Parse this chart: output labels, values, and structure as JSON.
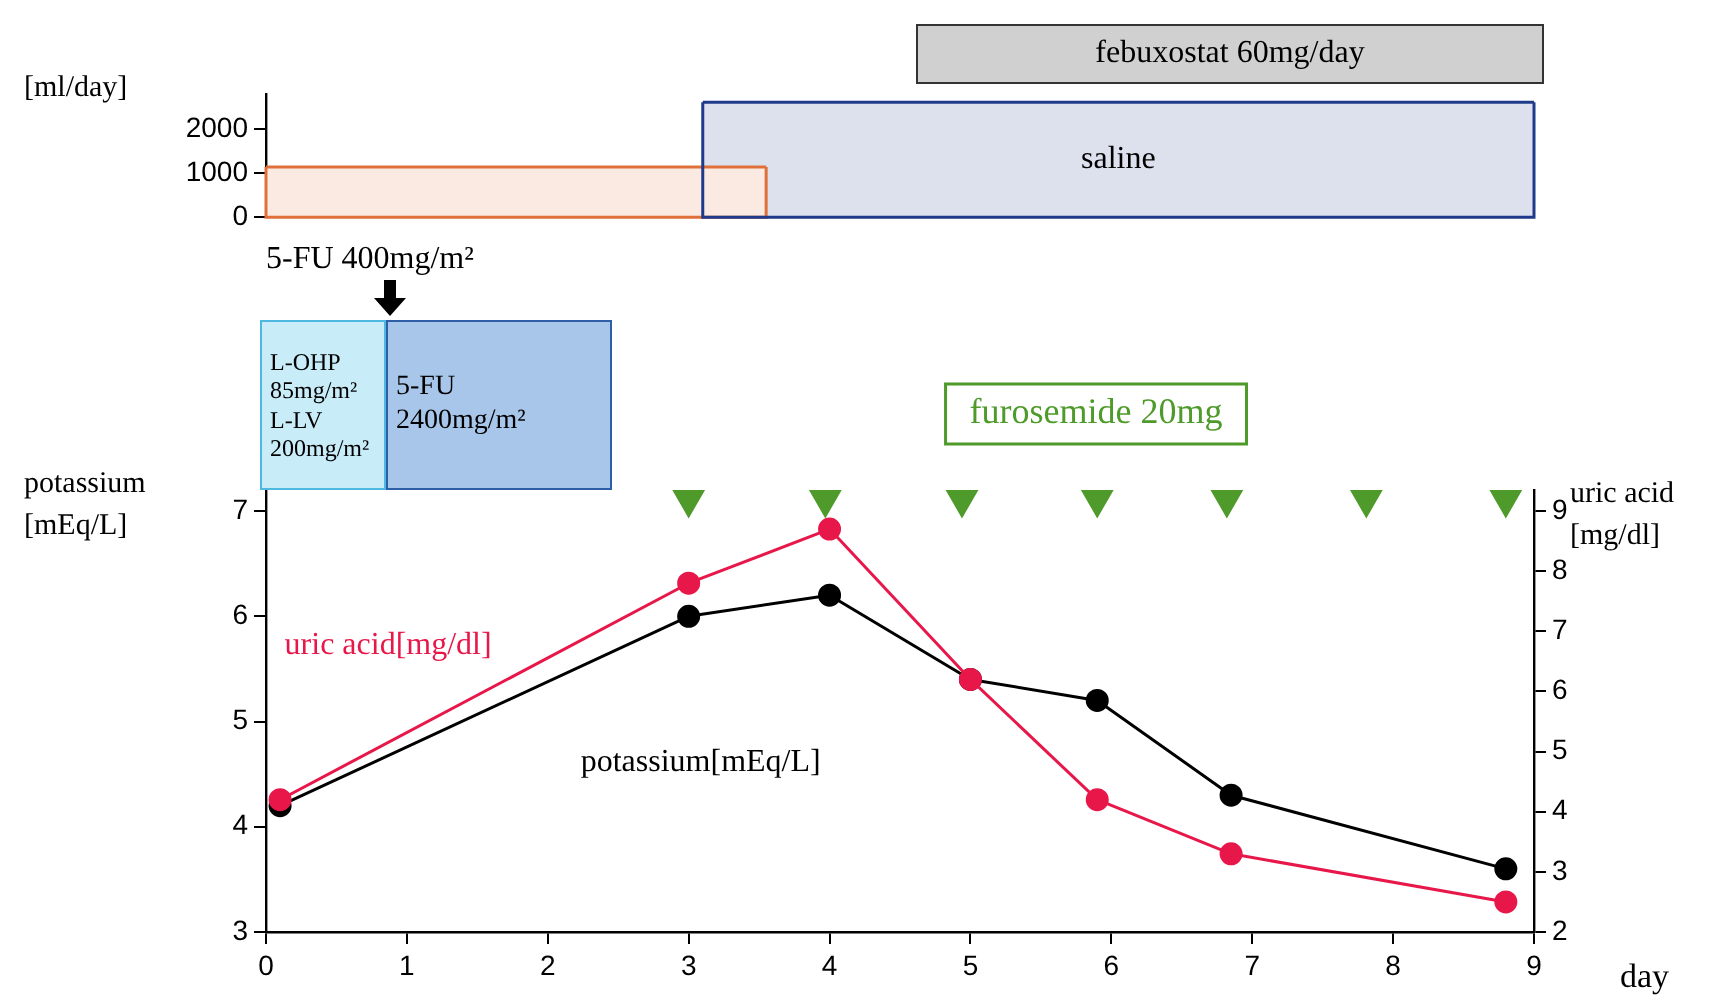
{
  "chart_data": [
    {
      "type": "area",
      "tick_labels": "y",
      "ylabel": "[ml/day]",
      "xlim": [
        0,
        9
      ],
      "ylim": [
        0,
        2800
      ],
      "yticks": [
        0,
        1000,
        2000
      ],
      "grid": false,
      "legend": false,
      "series": [
        {
          "color": "#e0703a",
          "x": [
            0,
            3.55
          ],
          "values": [
            1140,
            1140
          ]
        },
        {
          "name": "saline",
          "color": "#1f3a8a",
          "x": [
            3.1,
            9
          ],
          "values": [
            2610,
            2610
          ]
        }
      ],
      "annotations": [
        "febuxostat 60mg/day"
      ]
    },
    {
      "type": "line",
      "xlabel": "day",
      "ylabel": "potassium\n[mEq/L]",
      "y2label": "uric acid\n[mg/dl]",
      "xlim": [
        0,
        9
      ],
      "xticks": [
        0,
        1,
        2,
        3,
        4,
        5,
        6,
        7,
        8,
        9
      ],
      "ylim": [
        3,
        7.2
      ],
      "yticks": [
        3,
        4,
        5,
        6,
        7
      ],
      "y2lim": [
        2,
        9.35
      ],
      "y2ticks": [
        2,
        3,
        4,
        5,
        6,
        7,
        8,
        9
      ],
      "grid": false,
      "legend": false,
      "marker": "circle",
      "series": [
        {
          "name": "potassium[mEq/L]",
          "color": "#000000",
          "x": [
            0.1,
            3,
            4,
            5,
            5.9,
            6.85,
            8.8
          ],
          "values": [
            4.2,
            6.0,
            6.2,
            5.4,
            5.2,
            4.3,
            3.6
          ]
        },
        {
          "name": "uric acid[mg/dl]",
          "color": "#e8174a",
          "axis": "y2",
          "x": [
            0.1,
            3,
            4,
            5,
            5.9,
            6.85,
            8.8
          ],
          "values": [
            4.2,
            7.8,
            8.7,
            6.2,
            4.2,
            3.3,
            2.5
          ]
        },
        {
          "type": "scatter",
          "name": "furosemide 20mg",
          "color": "#4e9a2a",
          "marker": "triangle",
          "x": [
            3,
            3.97,
            4.94,
            5.9,
            6.82,
            7.81,
            8.8
          ],
          "values": [
            7.12,
            7.12,
            7.12,
            7.12,
            7.12,
            7.12,
            7.12
          ]
        }
      ],
      "annotations": [
        "L-OHP\n85mg/m²\nL-LV\n200mg/m²",
        "5-FU\n2400mg/m²",
        "5-FU 400mg/m²"
      ]
    }
  ]
}
